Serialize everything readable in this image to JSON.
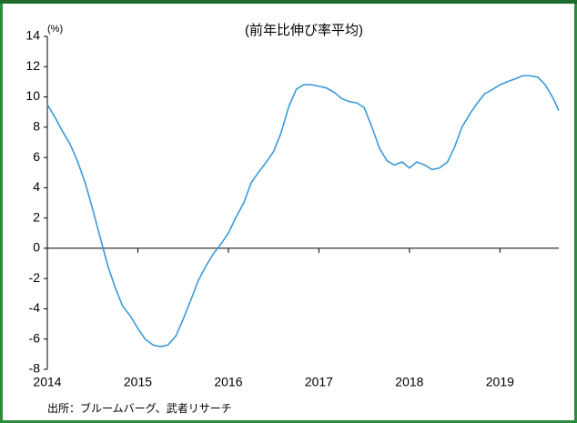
{
  "chart_data": {
    "type": "line",
    "title": "(前年比伸び率平均)",
    "y_unit": "(%)",
    "source": "出所：ブルームバーグ、武者リサーチ",
    "x": [
      2014.0,
      2014.08,
      2014.17,
      2014.25,
      2014.33,
      2014.42,
      2014.5,
      2014.58,
      2014.67,
      2014.75,
      2014.83,
      2014.92,
      2015.0,
      2015.08,
      2015.17,
      2015.25,
      2015.33,
      2015.42,
      2015.5,
      2015.58,
      2015.67,
      2015.75,
      2015.83,
      2015.92,
      2016.0,
      2016.08,
      2016.17,
      2016.25,
      2016.33,
      2016.42,
      2016.5,
      2016.58,
      2016.67,
      2016.75,
      2016.83,
      2016.92,
      2017.0,
      2017.08,
      2017.17,
      2017.25,
      2017.33,
      2017.42,
      2017.5,
      2017.58,
      2017.67,
      2017.75,
      2017.83,
      2017.92,
      2018.0,
      2018.08,
      2018.17,
      2018.25,
      2018.33,
      2018.42,
      2018.5,
      2018.58,
      2018.67,
      2018.75,
      2018.83,
      2018.92,
      2019.0,
      2019.08,
      2019.17,
      2019.25,
      2019.33,
      2019.42,
      2019.5,
      2019.58,
      2019.65
    ],
    "series": [
      {
        "name": "前年比伸び率平均",
        "color": "#3a9ad9",
        "values": [
          9.5,
          8.7,
          7.7,
          6.9,
          5.8,
          4.3,
          2.6,
          0.8,
          -1.2,
          -2.6,
          -3.8,
          -4.5,
          -5.3,
          -6.0,
          -6.4,
          -6.5,
          -6.4,
          -5.8,
          -4.7,
          -3.5,
          -2.1,
          -1.2,
          -0.4,
          0.3,
          1.0,
          2.0,
          3.0,
          4.3,
          5.0,
          5.7,
          6.4,
          7.6,
          9.4,
          10.5,
          10.8,
          10.8,
          10.7,
          10.6,
          10.3,
          9.9,
          9.7,
          9.6,
          9.3,
          8.1,
          6.6,
          5.8,
          5.5,
          5.7,
          5.3,
          5.7,
          5.5,
          5.2,
          5.3,
          5.7,
          6.7,
          8.0,
          8.9,
          9.6,
          10.2,
          10.5,
          10.8,
          11.0,
          11.2,
          11.4,
          11.4,
          11.3,
          10.8,
          10.0,
          9.1
        ]
      }
    ],
    "xlim": [
      2014,
      2019.65
    ],
    "xticks": [
      2014,
      2015,
      2016,
      2017,
      2018,
      2019
    ],
    "ylim": [
      -8,
      14
    ],
    "yticks": [
      -8,
      -6,
      -4,
      -2,
      0,
      2,
      4,
      6,
      8,
      10,
      12,
      14
    ],
    "grid": false
  }
}
